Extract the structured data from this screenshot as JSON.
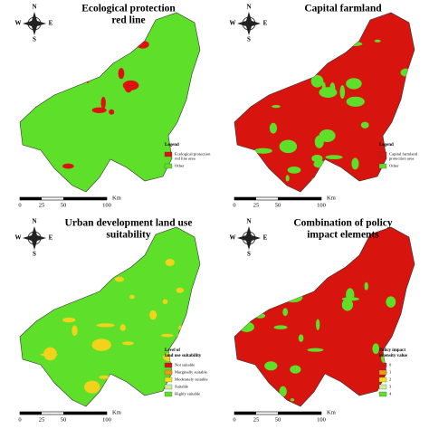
{
  "panels": [
    {
      "title": [
        "Ecological protection",
        "red line"
      ],
      "base": "#5ee02a",
      "patch": "#e01010",
      "patchCount": 14,
      "compass": [
        "N",
        "S",
        "E",
        "W"
      ],
      "legend": {
        "title": [
          "Legend"
        ],
        "items": [
          {
            "label": [
              "Ecological protection",
              "red line area"
            ],
            "color": "#e01010"
          },
          {
            "label": [
              "Other"
            ],
            "color": "#5ee02a"
          }
        ]
      },
      "scale": [
        "0",
        "25",
        "50",
        "100",
        "Km"
      ]
    },
    {
      "title": [
        "Capital farmland"
      ],
      "base": "#d8140e",
      "patch": "#5ee02a",
      "patchCount": 40,
      "compass": [
        "N",
        "S",
        "E",
        "W"
      ],
      "legend": {
        "title": [
          "Legend"
        ],
        "items": [
          {
            "label": [
              "Capital farmland",
              "protection area"
            ],
            "color": "#d8140e"
          },
          {
            "label": [
              "Other"
            ],
            "color": "#5ee02a"
          }
        ]
      },
      "scale": [
        "0",
        "25",
        "50",
        "100",
        "Km"
      ]
    },
    {
      "title": [
        "Urban development land use",
        "suitability"
      ],
      "base": "#5ee02a",
      "patch": "#f2d21a",
      "patchCount": 30,
      "compass": [
        "N",
        "S",
        "E",
        "W"
      ],
      "legend": {
        "title": [
          "Level of",
          "land use suitability"
        ],
        "items": [
          {
            "label": [
              "Not suitable"
            ],
            "color": "#e01010"
          },
          {
            "label": [
              "Marginally suitable"
            ],
            "color": "#f29a10"
          },
          {
            "label": [
              "Moderately suitable"
            ],
            "color": "#f2e21a"
          },
          {
            "label": [
              "Suitable"
            ],
            "color": "#c8f0a0"
          },
          {
            "label": [
              "Highly suitable"
            ],
            "color": "#5ee02a"
          }
        ]
      },
      "scale": [
        "0",
        "25",
        "50",
        "100",
        "Km"
      ]
    },
    {
      "title": [
        "Combination of policy",
        "impact elements"
      ],
      "base": "#d8140e",
      "patch": "#5ee02a",
      "patchCount": 36,
      "compass": [
        "N",
        "S",
        "E",
        "W"
      ],
      "legend": {
        "title": [
          "Policy impact",
          "intensity value"
        ],
        "items": [
          {
            "label": [
              "0"
            ],
            "color": "#e01010"
          },
          {
            "label": [
              "1"
            ],
            "color": "#f29a10"
          },
          {
            "label": [
              "2"
            ],
            "color": "#f2e21a"
          },
          {
            "label": [
              "3"
            ],
            "color": "#c8f0a0"
          },
          {
            "label": [
              "4"
            ],
            "color": "#5ee02a"
          }
        ]
      },
      "scale": [
        "0",
        "25",
        "50",
        "100",
        "Km"
      ]
    }
  ]
}
